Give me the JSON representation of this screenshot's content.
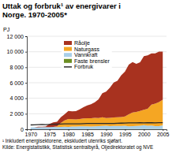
{
  "chart_data": {
    "type": "area",
    "stacked": true,
    "title": "Uttak og forbruk¹ av energivarer i Norge. 1970-2005*",
    "y_label": "PJ",
    "notes": [
      "¹ Inkludert energisektorene, ekskludert utenriks sjøfart.",
      "Kilde: Energistatistikk, Statistisk sentralbyrå, Oljedirektoratet og NVE"
    ],
    "x": [
      1970,
      1971,
      1972,
      1973,
      1974,
      1975,
      1976,
      1977,
      1978,
      1979,
      1980,
      1981,
      1982,
      1983,
      1984,
      1985,
      1986,
      1987,
      1988,
      1989,
      1990,
      1991,
      1992,
      1993,
      1994,
      1995,
      1996,
      1997,
      1998,
      1999,
      2000,
      2001,
      2002,
      2003,
      2004,
      2005
    ],
    "xlim": [
      1969,
      2006
    ],
    "xticks": [
      1970,
      1975,
      1980,
      1985,
      1990,
      1995,
      2000,
      2005
    ],
    "ylim": [
      0,
      12000
    ],
    "yticks": [
      0,
      {
        "value": 2000,
        "label": "2 000"
      },
      {
        "value": 4000,
        "label": "4 000"
      },
      {
        "value": 6000,
        "label": "6 000"
      },
      {
        "value": 8000,
        "label": "8 000"
      },
      {
        "value": 10000,
        "label": "10 000"
      },
      {
        "value": 12000,
        "label": "12 000"
      }
    ],
    "grid": true,
    "legend": "upper left",
    "series": [
      {
        "name": "Råolje",
        "type": "area",
        "color": "#a8321f",
        "values": [
          0,
          15,
          70,
          70,
          75,
          400,
          580,
          580,
          730,
          790,
          1050,
          1020,
          1050,
          1250,
          1450,
          1650,
          1800,
          2000,
          2400,
          3100,
          3400,
          3900,
          4500,
          4700,
          5400,
          5800,
          6400,
          6500,
          6200,
          6300,
          6900,
          6900,
          6600,
          6500,
          6500,
          6200
        ]
      },
      {
        "name": "Naturgass",
        "type": "area",
        "color": "#f5a623",
        "values": [
          0,
          0,
          0,
          0,
          0,
          0,
          0,
          100,
          500,
          800,
          1000,
          950,
          930,
          930,
          1000,
          1040,
          1070,
          1100,
          1050,
          1100,
          1000,
          1050,
          1100,
          1100,
          1150,
          1200,
          1550,
          1750,
          1800,
          1900,
          2000,
          2200,
          2700,
          2900,
          3100,
          3300
        ]
      },
      {
        "name": "Vannkraft",
        "type": "area",
        "color": "#a9cfe8",
        "values": [
          210,
          230,
          250,
          260,
          275,
          280,
          290,
          280,
          300,
          320,
          300,
          335,
          335,
          380,
          380,
          370,
          350,
          370,
          395,
          430,
          435,
          400,
          420,
          430,
          410,
          440,
          375,
          400,
          420,
          440,
          510,
          430,
          470,
          385,
          395,
          495
        ]
      },
      {
        "name": "Faste brensler",
        "type": "area",
        "color": "#6b8e23",
        "values": [
          12,
          12,
          12,
          12,
          12,
          12,
          12,
          12,
          12,
          12,
          12,
          12,
          12,
          12,
          12,
          13,
          13,
          13,
          13,
          13,
          14,
          14,
          14,
          14,
          14,
          14,
          14,
          14,
          15,
          15,
          15,
          15,
          15,
          15,
          15,
          15
        ]
      },
      {
        "name": "Forbruk",
        "type": "line",
        "color": "#2b2b2b",
        "values": [
          560,
          580,
          600,
          620,
          600,
          620,
          650,
          660,
          680,
          700,
          700,
          690,
          690,
          700,
          720,
          740,
          750,
          760,
          760,
          750,
          760,
          760,
          760,
          780,
          790,
          800,
          820,
          820,
          830,
          840,
          830,
          840,
          840,
          830,
          850,
          850
        ]
      }
    ]
  }
}
